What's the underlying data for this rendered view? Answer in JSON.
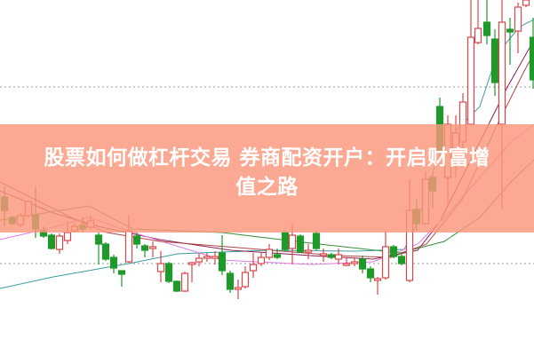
{
  "article": {
    "title_line1": "股票如何做杠杆交易 券商配资开户：开启财富增",
    "title_line2": "值之路"
  },
  "colors": {
    "up_candle": "#d9454a",
    "down_candle": "#1f9a2a",
    "banner": "#fa967a",
    "title_text": "#ffffff",
    "gridline": "#999999"
  }
}
